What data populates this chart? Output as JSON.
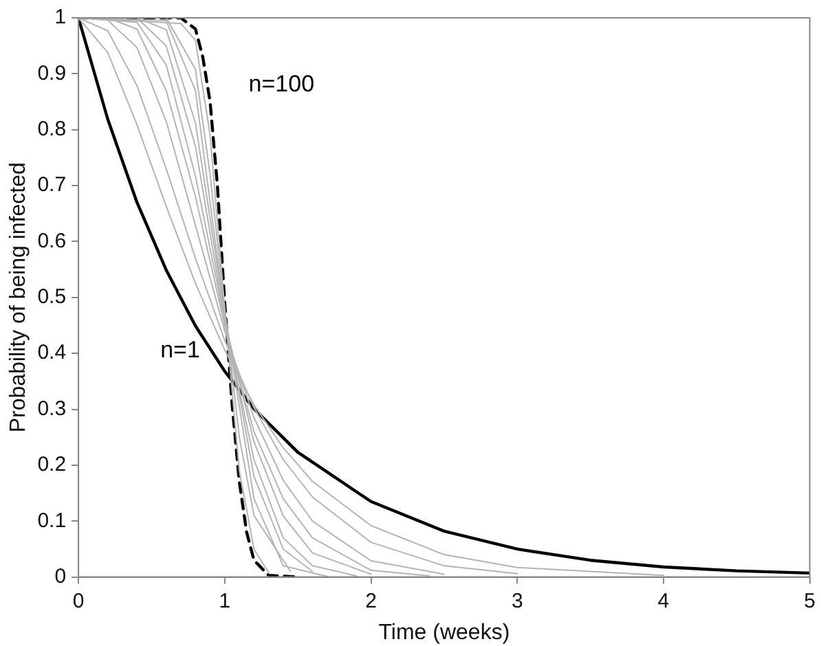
{
  "chart_data": {
    "type": "line",
    "xlabel": "Time (weeks)",
    "ylabel": "Probability of being infected",
    "xlim": [
      0,
      5
    ],
    "ylim": [
      0,
      1
    ],
    "xticks": [
      0,
      1,
      2,
      3,
      4,
      5
    ],
    "yticks": [
      0,
      0.1,
      0.2,
      0.3,
      0.4,
      0.5,
      0.6,
      0.7,
      0.8,
      0.9,
      1
    ],
    "grid": false,
    "legend": false,
    "marker": "none",
    "series": [
      {
        "color": "#b4b4b4",
        "x": [
          0,
          0.2,
          0.4,
          0.6,
          0.8,
          1,
          1.2,
          1.4,
          1.6,
          2,
          2.5,
          3,
          4
        ],
        "values": [
          1,
          0.938,
          0.809,
          0.663,
          0.525,
          0.406,
          0.308,
          0.231,
          0.171,
          0.092,
          0.04,
          0.017,
          0.003
        ]
      },
      {
        "color": "#b4b4b4",
        "x": [
          0,
          0.2,
          0.4,
          0.6,
          0.8,
          1,
          1.2,
          1.4,
          1.6,
          2,
          2.5,
          3
        ],
        "values": [
          1,
          0.977,
          0.879,
          0.73,
          0.57,
          0.423,
          0.303,
          0.21,
          0.143,
          0.062,
          0.02,
          0.006
        ]
      },
      {
        "color": "#b4b4b4",
        "x": [
          0,
          0.2,
          0.4,
          0.6,
          0.8,
          1,
          1.2,
          1.4,
          1.6,
          2,
          2.5
        ],
        "values": [
          1,
          0.996,
          0.947,
          0.815,
          0.629,
          0.44,
          0.285,
          0.173,
          0.1,
          0.029,
          0.005
        ]
      },
      {
        "color": "#b4b4b4",
        "x": [
          0,
          0.2,
          0.4,
          0.6,
          0.8,
          1,
          1.2,
          1.4,
          1.6,
          2,
          2.4
        ],
        "values": [
          1,
          1,
          0.98,
          0.87,
          0.68,
          0.45,
          0.26,
          0.14,
          0.07,
          0.012,
          0.002
        ]
      },
      {
        "color": "#b4b4b4",
        "x": [
          0,
          0.4,
          0.6,
          0.8,
          1,
          1.2,
          1.4,
          1.6,
          2
        ],
        "values": [
          1,
          0.992,
          0.916,
          0.717,
          0.458,
          0.242,
          0.109,
          0.043,
          0.005
        ]
      },
      {
        "color": "#b4b4b4",
        "x": [
          0,
          0.4,
          0.6,
          0.8,
          1,
          1.2,
          1.4,
          1.6,
          1.9
        ],
        "values": [
          1,
          1,
          0.95,
          0.77,
          0.46,
          0.21,
          0.07,
          0.02,
          0.002
        ]
      },
      {
        "color": "#b4b4b4",
        "x": [
          0,
          0.4,
          0.6,
          0.8,
          1,
          1.2,
          1.4,
          1.6
        ],
        "values": [
          1,
          1,
          0.979,
          0.812,
          0.47,
          0.18,
          0.05,
          0.01
        ]
      },
      {
        "color": "#b4b4b4",
        "x": [
          0,
          0.6,
          0.8,
          1,
          1.2,
          1.4,
          1.7
        ],
        "values": [
          1,
          0.995,
          0.87,
          0.47,
          0.14,
          0.02,
          0.001
        ]
      },
      {
        "color": "#b4b4b4",
        "x": [
          0,
          0.6,
          0.8,
          0.9,
          1,
          1.1,
          1.2,
          1.45
        ],
        "values": [
          1,
          1,
          0.908,
          0.72,
          0.48,
          0.25,
          0.11,
          0.01
        ]
      },
      {
        "color": "#b4b4b4",
        "x": [
          0,
          0.7,
          0.8,
          0.9,
          1,
          1.1,
          1.2,
          1.3
        ],
        "values": [
          1,
          0.99,
          0.96,
          0.79,
          0.48,
          0.19,
          0.05,
          0.008
        ]
      },
      {
        "name": "n=1",
        "color": "#000000",
        "x": [
          0,
          0.2,
          0.4,
          0.6,
          0.8,
          1,
          1.2,
          1.5,
          2,
          2.5,
          3,
          3.5,
          4,
          4.5,
          5
        ],
        "values": [
          1,
          0.819,
          0.67,
          0.549,
          0.449,
          0.368,
          0.301,
          0.223,
          0.135,
          0.082,
          0.05,
          0.03,
          0.018,
          0.011,
          0.007
        ]
      },
      {
        "name": "n=100",
        "color": "#000000",
        "line_style": "dashed",
        "x": [
          0,
          0.7,
          0.8,
          0.85,
          0.9,
          0.95,
          1,
          1.05,
          1.1,
          1.15,
          1.2,
          1.3,
          1.5
        ],
        "values": [
          1,
          1,
          0.98,
          0.93,
          0.85,
          0.7,
          0.49,
          0.31,
          0.17,
          0.08,
          0.03,
          0.003,
          0
        ]
      }
    ]
  }
}
